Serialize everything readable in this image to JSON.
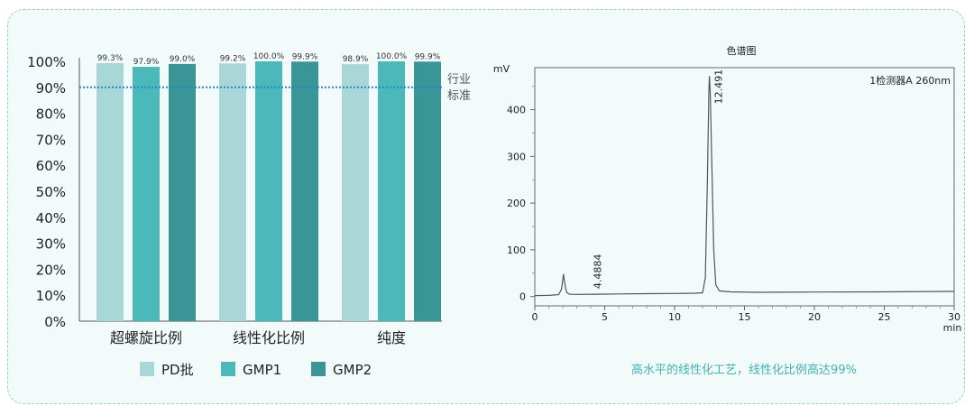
{
  "colors": {
    "pd": "#a9d6d7",
    "gmp1": "#4bb9b9",
    "gmp2": "#3a9597",
    "reference": "#1e88d0",
    "caption": "#3fb3b3",
    "trace": "#555555"
  },
  "chart_data": [
    {
      "type": "bar",
      "categories": [
        "超螺旋比例",
        "线性化比例",
        "纯度"
      ],
      "series": [
        {
          "name": "PD批",
          "values": [
            99.3,
            99.2,
            98.9
          ],
          "labels": [
            "99.3%",
            "99.2%",
            "98.9%"
          ]
        },
        {
          "name": "GMP1",
          "values": [
            97.9,
            100.0,
            100.0
          ],
          "labels": [
            "97.9%",
            "100.0%",
            "100.0%"
          ]
        },
        {
          "name": "GMP2",
          "values": [
            99.0,
            99.9,
            99.9
          ],
          "labels": [
            "99.0%",
            "99.9%",
            "99.9%"
          ]
        }
      ],
      "ylim": [
        0,
        100
      ],
      "yticks": [
        "0%",
        "10%",
        "20%",
        "30%",
        "40%",
        "50%",
        "60%",
        "70%",
        "80%",
        "90%",
        "100%"
      ],
      "reference_line": {
        "value": 90,
        "label_line1": "行业",
        "label_line2": "标准"
      },
      "legend": "bottom"
    },
    {
      "type": "line",
      "title": "色谱图",
      "ylabel": "mV",
      "xlabel": "min",
      "xlim": [
        0,
        30
      ],
      "ylim": [
        -20,
        490
      ],
      "xticks": [
        0,
        5,
        10,
        15,
        20,
        25,
        30
      ],
      "yticks": [
        0,
        100,
        200,
        300,
        400
      ],
      "detector_label": "1检测器A 260nm",
      "peak_labels": [
        {
          "x": 4.4884,
          "y": 5,
          "text": "4.4884"
        },
        {
          "x": 12.491,
          "y": 470,
          "text": "12.491"
        }
      ],
      "series": [
        {
          "points": [
            [
              0,
              2
            ],
            [
              1.0,
              2.5
            ],
            [
              1.7,
              4
            ],
            [
              1.9,
              15
            ],
            [
              2.0,
              35
            ],
            [
              2.05,
              48
            ],
            [
              2.1,
              38
            ],
            [
              2.2,
              18
            ],
            [
              2.3,
              8
            ],
            [
              2.5,
              5
            ],
            [
              3.0,
              4.5
            ],
            [
              4.4884,
              5
            ],
            [
              6,
              5.5
            ],
            [
              8,
              6
            ],
            [
              10,
              6.5
            ],
            [
              11.5,
              7
            ],
            [
              12.0,
              8
            ],
            [
              12.2,
              40
            ],
            [
              12.35,
              250
            ],
            [
              12.45,
              440
            ],
            [
              12.491,
              472
            ],
            [
              12.55,
              440
            ],
            [
              12.65,
              300
            ],
            [
              12.8,
              100
            ],
            [
              12.95,
              25
            ],
            [
              13.2,
              12
            ],
            [
              14,
              10
            ],
            [
              16,
              9
            ],
            [
              20,
              9.5
            ],
            [
              25,
              10
            ],
            [
              30,
              11
            ]
          ]
        }
      ]
    }
  ],
  "caption": "高水平的线性化工艺，线性化比例高达99%"
}
